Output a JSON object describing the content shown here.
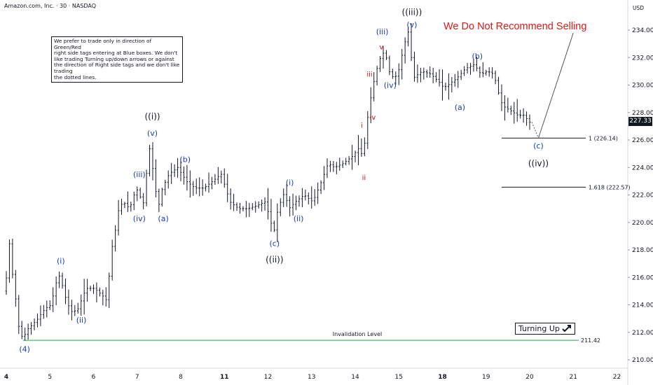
{
  "header": {
    "symbol_line": "Amazon.com, Inc. · 30 · NASDAQ",
    "currency": "USD"
  },
  "note_text": "We prefer to trade only in direction of Green/Red\nright side tags entering at Blue boxes. We don't\nlike trading Turning up/down arrows or against\nthe direction of Right side tags and we don't like trading\nthe dotted lines.",
  "warning": "We Do Not Recommend Selling",
  "turning_label": "Turning Up",
  "turning_icon": "up-right-arrow-icon",
  "last_price": "227.33",
  "colors": {
    "blue": "#1c39bb",
    "red": "#d01010",
    "green": "#2ea043",
    "candles": "#131722"
  },
  "chart_data": {
    "type": "candlestick",
    "yaxis": {
      "min": 209,
      "max": 235,
      "ticks": [
        210,
        212,
        214,
        216,
        218,
        220,
        222,
        224,
        226,
        228,
        230,
        232,
        234
      ]
    },
    "xaxis": {
      "ticks": [
        {
          "label": "4",
          "bold": true,
          "d": 0
        },
        {
          "label": "5",
          "bold": false,
          "d": 1
        },
        {
          "label": "6",
          "bold": false,
          "d": 2
        },
        {
          "label": "7",
          "bold": false,
          "d": 3
        },
        {
          "label": "8",
          "bold": false,
          "d": 4
        },
        {
          "label": "11",
          "bold": true,
          "d": 5
        },
        {
          "label": "12",
          "bold": false,
          "d": 6
        },
        {
          "label": "13",
          "bold": false,
          "d": 7
        },
        {
          "label": "14",
          "bold": false,
          "d": 8
        },
        {
          "label": "15",
          "bold": false,
          "d": 9
        },
        {
          "label": "18",
          "bold": true,
          "d": 10
        },
        {
          "label": "19",
          "bold": false,
          "d": 11
        },
        {
          "label": "20",
          "bold": false,
          "d": 12
        },
        {
          "label": "21",
          "bold": false,
          "d": 13
        },
        {
          "label": "22",
          "bold": false,
          "d": 14
        }
      ]
    },
    "price_path": [
      [
        0.0,
        215.0
      ],
      [
        0.05,
        214.8
      ],
      [
        0.1,
        217.5
      ],
      [
        0.15,
        218.6
      ],
      [
        0.2,
        216.5
      ],
      [
        0.25,
        215.5
      ],
      [
        0.35,
        212.5
      ],
      [
        0.45,
        211.5
      ],
      [
        0.55,
        212.2
      ],
      [
        0.65,
        212.5
      ],
      [
        0.8,
        213.0
      ],
      [
        0.9,
        213.5
      ],
      [
        1.0,
        213.8
      ],
      [
        1.1,
        214.0
      ],
      [
        1.2,
        215.5
      ],
      [
        1.3,
        216.2
      ],
      [
        1.4,
        214.8
      ],
      [
        1.55,
        213.5
      ],
      [
        1.7,
        213.6
      ],
      [
        1.9,
        215.2
      ],
      [
        2.1,
        215.2
      ],
      [
        2.3,
        214.6
      ],
      [
        2.4,
        214.2
      ],
      [
        2.45,
        217.5
      ],
      [
        2.55,
        219.0
      ],
      [
        2.65,
        221.0
      ],
      [
        2.75,
        221.5
      ],
      [
        2.9,
        221.0
      ],
      [
        3.0,
        222.0
      ],
      [
        3.1,
        222.5
      ],
      [
        3.2,
        221.0
      ],
      [
        3.3,
        224.0
      ],
      [
        3.35,
        225.5
      ],
      [
        3.45,
        223.5
      ],
      [
        3.55,
        221.0
      ],
      [
        3.65,
        222.5
      ],
      [
        3.8,
        223.5
      ],
      [
        4.0,
        224.0
      ],
      [
        4.1,
        223.5
      ],
      [
        4.2,
        223.0
      ],
      [
        4.4,
        222.5
      ],
      [
        4.6,
        222.5
      ],
      [
        4.8,
        223.0
      ],
      [
        5.0,
        223.5
      ],
      [
        5.1,
        222.5
      ],
      [
        5.2,
        221.5
      ],
      [
        5.4,
        221.0
      ],
      [
        5.6,
        221.0
      ],
      [
        5.8,
        221.2
      ],
      [
        6.0,
        221.5
      ],
      [
        6.1,
        220.5
      ],
      [
        6.2,
        219.2
      ],
      [
        6.3,
        221.0
      ],
      [
        6.45,
        222.2
      ],
      [
        6.55,
        221.0
      ],
      [
        6.7,
        221.5
      ],
      [
        6.9,
        222.0
      ],
      [
        7.1,
        221.5
      ],
      [
        7.3,
        223.0
      ],
      [
        7.45,
        224.3
      ],
      [
        7.6,
        224.0
      ],
      [
        7.8,
        224.3
      ],
      [
        8.0,
        224.8
      ],
      [
        8.15,
        225.4
      ],
      [
        8.25,
        224.8
      ],
      [
        8.35,
        227.5
      ],
      [
        8.45,
        229.5
      ],
      [
        8.55,
        231.0
      ],
      [
        8.65,
        232.0
      ],
      [
        8.75,
        232.5
      ],
      [
        8.85,
        231.0
      ],
      [
        8.95,
        230.5
      ],
      [
        9.05,
        230.8
      ],
      [
        9.2,
        233.0
      ],
      [
        9.3,
        234.0
      ],
      [
        9.4,
        230.5
      ],
      [
        9.6,
        231.0
      ],
      [
        9.8,
        230.8
      ],
      [
        10.0,
        230.2
      ],
      [
        10.1,
        229.8
      ],
      [
        10.2,
        230.0
      ],
      [
        10.4,
        230.5
      ],
      [
        10.6,
        231.2
      ],
      [
        10.8,
        231.5
      ],
      [
        10.95,
        230.8
      ],
      [
        11.1,
        231.0
      ],
      [
        11.25,
        230.8
      ],
      [
        11.35,
        229.5
      ],
      [
        11.45,
        228.5
      ],
      [
        11.6,
        228.2
      ],
      [
        11.8,
        227.8
      ],
      [
        11.95,
        227.8
      ],
      [
        12.05,
        227.3
      ]
    ],
    "projection": {
      "from": [
        12.05,
        227.3
      ],
      "low": [
        12.2,
        226.14
      ],
      "to": [
        13.0,
        233.8
      ]
    },
    "invalidation": {
      "value": 211.42,
      "label": "Invalidation Level",
      "price_label": "211.42"
    },
    "fib_levels": [
      {
        "value": 226.14,
        "label": "1 (226.14)"
      },
      {
        "value": 222.57,
        "label": "1.618 (222.57)"
      }
    ],
    "wave_labels": [
      {
        "text": "(4)",
        "d": 0.42,
        "price": 211.1,
        "color": "blue",
        "pos": "below"
      },
      {
        "text": "(i)",
        "d": 1.25,
        "price": 216.9,
        "color": "blue",
        "pos": "above"
      },
      {
        "text": "(ii)",
        "d": 1.72,
        "price": 213.2,
        "color": "blue",
        "pos": "below"
      },
      {
        "text": "(iii)",
        "d": 3.05,
        "price": 223.2,
        "color": "blue",
        "pos": "above"
      },
      {
        "text": "(iv)",
        "d": 3.05,
        "price": 220.6,
        "color": "blue",
        "pos": "below"
      },
      {
        "text": "(v)",
        "d": 3.35,
        "price": 226.2,
        "color": "blue",
        "pos": "above"
      },
      {
        "text": "((i))",
        "d": 3.35,
        "price": 227.4,
        "color": "black",
        "pos": "above"
      },
      {
        "text": "(a)",
        "d": 3.6,
        "price": 220.6,
        "color": "blue",
        "pos": "below"
      },
      {
        "text": "(b)",
        "d": 4.1,
        "price": 224.3,
        "color": "blue",
        "pos": "above"
      },
      {
        "text": "(c)",
        "d": 6.15,
        "price": 218.8,
        "color": "blue",
        "pos": "below"
      },
      {
        "text": "((ii))",
        "d": 6.15,
        "price": 217.6,
        "color": "black",
        "pos": "below"
      },
      {
        "text": "(i)",
        "d": 6.5,
        "price": 222.6,
        "color": "blue",
        "pos": "above"
      },
      {
        "text": "(ii)",
        "d": 6.7,
        "price": 220.6,
        "color": "blue",
        "pos": "below"
      },
      {
        "text": "i",
        "d": 8.15,
        "price": 226.8,
        "color": "red",
        "pos": "above"
      },
      {
        "text": "ii",
        "d": 8.2,
        "price": 223.6,
        "color": "red",
        "pos": "below"
      },
      {
        "text": "iii",
        "d": 8.33,
        "price": 230.5,
        "color": "red",
        "pos": "above"
      },
      {
        "text": "iv",
        "d": 8.4,
        "price": 228.0,
        "color": "red",
        "pos": "below"
      },
      {
        "text": "v",
        "d": 8.6,
        "price": 232.5,
        "color": "red",
        "pos": "above"
      },
      {
        "text": "(iii)",
        "d": 8.62,
        "price": 233.6,
        "color": "blue",
        "pos": "above"
      },
      {
        "text": "(iv)",
        "d": 8.8,
        "price": 230.3,
        "color": "blue",
        "pos": "below"
      },
      {
        "text": "(v)",
        "d": 9.3,
        "price": 234.1,
        "color": "blue",
        "pos": "above"
      },
      {
        "text": "((iii))",
        "d": 9.3,
        "price": 235.0,
        "color": "black",
        "pos": "above"
      },
      {
        "text": "(a)",
        "d": 10.4,
        "price": 228.7,
        "color": "blue",
        "pos": "below"
      },
      {
        "text": "(b)",
        "d": 10.8,
        "price": 231.8,
        "color": "blue",
        "pos": "above"
      },
      {
        "text": "(c)",
        "d": 12.2,
        "price": 225.9,
        "color": "blue",
        "pos": "below"
      },
      {
        "text": "((iv))",
        "d": 12.2,
        "price": 224.6,
        "color": "black",
        "pos": "below"
      }
    ]
  }
}
